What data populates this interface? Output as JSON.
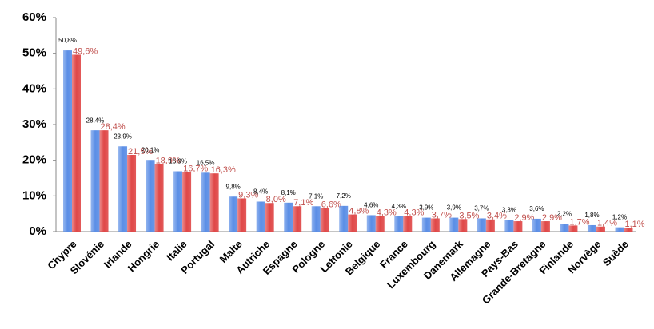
{
  "chart_data": {
    "type": "bar",
    "categories": [
      "Chypre",
      "Slovénie",
      "Irlande",
      "Hongrie",
      "Italie",
      "Portugal",
      "Malte",
      "Autriche",
      "Espagne",
      "Pologne",
      "Lettonie",
      "Belgique",
      "France",
      "Luxembourg",
      "Danemark",
      "Allemagne",
      "Pays-Bas",
      "Grande-Bretagne",
      "Finlande",
      "Norvège",
      "Suède"
    ],
    "series": [
      {
        "color": "#5b8ee6",
        "values": [
          50.8,
          28.4,
          23.9,
          20.1,
          16.9,
          16.5,
          9.8,
          8.4,
          8.1,
          7.1,
          7.2,
          4.6,
          4.3,
          3.9,
          3.9,
          3.7,
          3.3,
          3.6,
          2.2,
          1.8,
          1.2
        ],
        "value_labels": [
          "50,8%",
          "28,4%",
          "23,9%",
          "20,1%",
          "16,9%",
          "16,5%",
          "9,8%",
          "8,4%",
          "8,1%",
          "7,1%",
          "7,2%",
          "4,6%",
          "4,3%",
          "3,9%",
          "3,9%",
          "3,7%",
          "3,3%",
          "3,6%",
          "2,2%",
          "1,8%",
          "1,2%"
        ]
      },
      {
        "color": "#e04848",
        "values": [
          49.6,
          28.4,
          21.5,
          18.9,
          16.7,
          16.3,
          9.3,
          8.0,
          7.1,
          6.6,
          4.8,
          4.3,
          4.3,
          3.7,
          3.5,
          3.4,
          2.9,
          2.9,
          1.7,
          1.4,
          1.1
        ],
        "value_labels": [
          "49,6%",
          "28,4%",
          "21,5%",
          "18,9%",
          "16,7%",
          "16,3%",
          "9,3%",
          "8,0%",
          "7,1%",
          "6,6%",
          "4,8%",
          "4,3%",
          "4,3%",
          "3,7%",
          "3,5%",
          "3,4%",
          "2,9%",
          "2,9%",
          "1,7%",
          "1,4%",
          "1,1%"
        ]
      }
    ],
    "ylim": [
      0,
      60
    ],
    "yticks": [
      {
        "value": 0,
        "label": "0%"
      },
      {
        "value": 10,
        "label": "10%"
      },
      {
        "value": 20,
        "label": "20%"
      },
      {
        "value": 30,
        "label": "30%"
      },
      {
        "value": 40,
        "label": "40%"
      },
      {
        "value": 50,
        "label": "50%"
      },
      {
        "value": 60,
        "label": "60%"
      }
    ]
  }
}
